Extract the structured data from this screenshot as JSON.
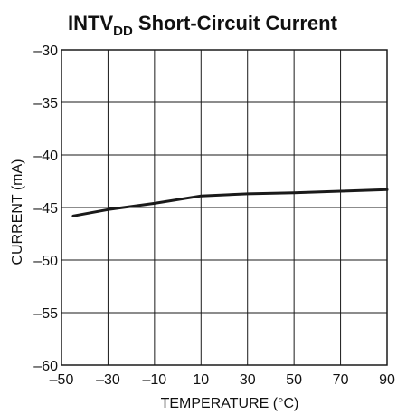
{
  "chart_data": {
    "type": "line",
    "title": {
      "prefix": "INTV",
      "subscript": "DD",
      "suffix": " Short-Circuit Current"
    },
    "xlabel": "TEMPERATURE (°C)",
    "ylabel": "CURRENT (mA)",
    "xlim": [
      -50,
      90
    ],
    "ylim": [
      -60,
      -30
    ],
    "x_ticks": [
      -50,
      -30,
      -10,
      10,
      30,
      50,
      70,
      90
    ],
    "x_tick_labels": [
      "–50",
      "–30",
      "–10",
      "10",
      "30",
      "50",
      "70",
      "90"
    ],
    "y_ticks": [
      -30,
      -35,
      -40,
      -45,
      -50,
      -55,
      -60
    ],
    "y_tick_labels": [
      "–30",
      "–35",
      "–40",
      "–45",
      "–50",
      "–55",
      "–60"
    ],
    "grid": true,
    "series": [
      {
        "x": [
          -45,
          -30,
          -10,
          10,
          30,
          50,
          70,
          90
        ],
        "y": [
          -45.8,
          -45.2,
          -44.6,
          -43.9,
          -43.7,
          -43.6,
          -43.45,
          -43.3
        ]
      }
    ]
  },
  "colors": {
    "line": "#1a1a1a",
    "grid": "#1a1a1a",
    "text": "#111111"
  }
}
